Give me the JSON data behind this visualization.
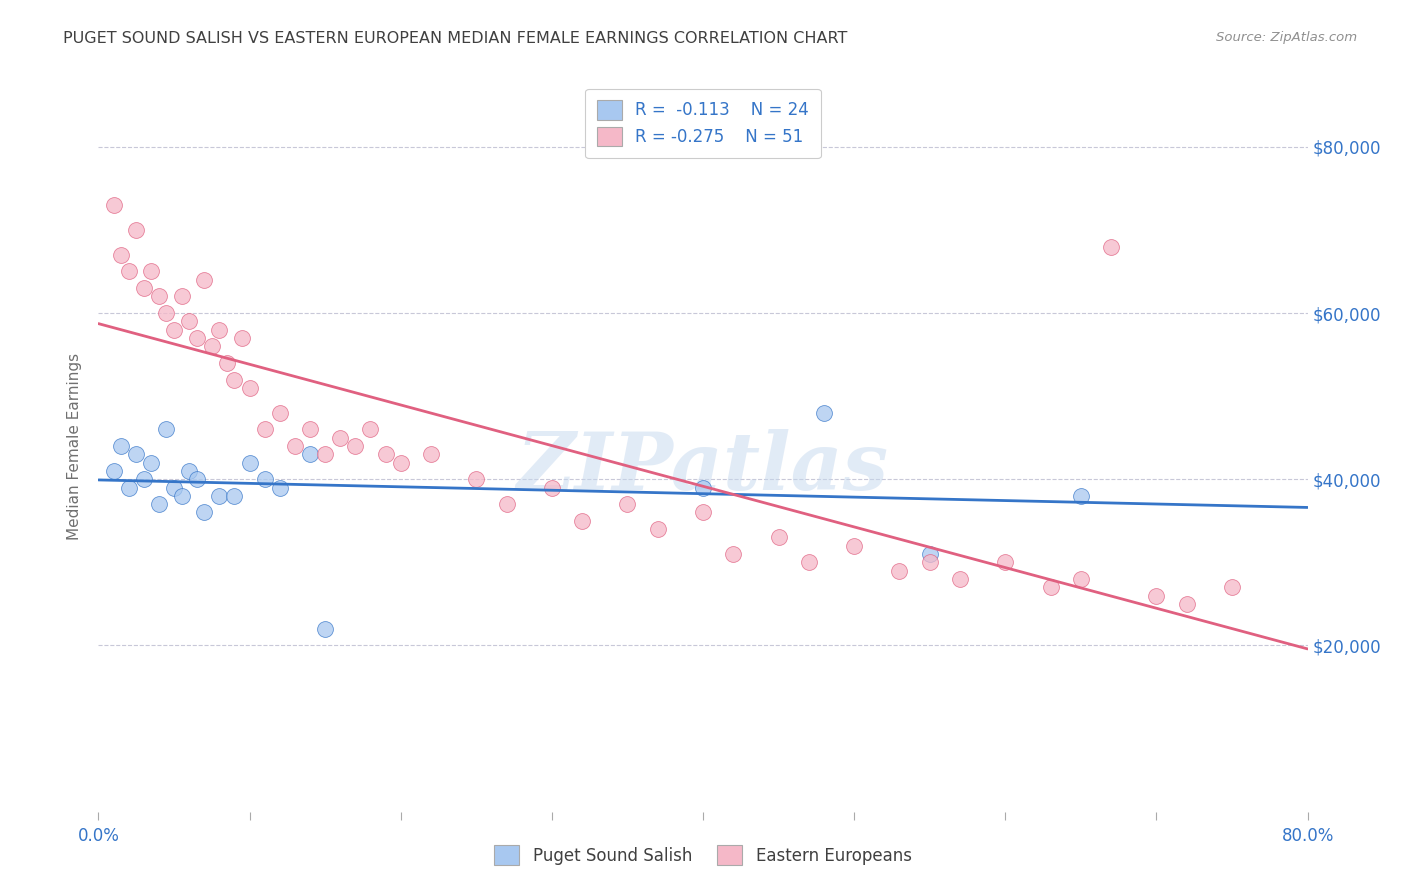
{
  "title": "PUGET SOUND SALISH VS EASTERN EUROPEAN MEDIAN FEMALE EARNINGS CORRELATION CHART",
  "source": "Source: ZipAtlas.com",
  "ylabel": "Median Female Earnings",
  "yticks": [
    20000,
    40000,
    60000,
    80000
  ],
  "ytick_labels": [
    "$20,000",
    "$40,000",
    "$60,000",
    "$80,000"
  ],
  "legend_blue_label": "Puget Sound Salish",
  "legend_pink_label": "Eastern Europeans",
  "watermark": "ZIPatlas",
  "blue_points_x": [
    1.0,
    1.5,
    2.0,
    2.5,
    3.0,
    3.5,
    4.0,
    4.5,
    5.0,
    5.5,
    6.0,
    6.5,
    7.0,
    8.0,
    9.0,
    10.0,
    11.0,
    12.0,
    14.0,
    15.0,
    40.0,
    48.0,
    55.0,
    65.0
  ],
  "blue_points_y": [
    41000,
    44000,
    39000,
    43000,
    40000,
    42000,
    37000,
    46000,
    39000,
    38000,
    41000,
    40000,
    36000,
    38000,
    38000,
    42000,
    40000,
    39000,
    43000,
    22000,
    39000,
    48000,
    31000,
    38000
  ],
  "pink_points_x": [
    1.0,
    1.5,
    2.0,
    2.5,
    3.0,
    3.5,
    4.0,
    4.5,
    5.0,
    5.5,
    6.0,
    6.5,
    7.0,
    7.5,
    8.0,
    8.5,
    9.0,
    9.5,
    10.0,
    11.0,
    12.0,
    13.0,
    14.0,
    15.0,
    16.0,
    17.0,
    18.0,
    19.0,
    20.0,
    22.0,
    25.0,
    27.0,
    30.0,
    32.0,
    35.0,
    37.0,
    40.0,
    42.0,
    45.0,
    47.0,
    50.0,
    53.0,
    55.0,
    57.0,
    60.0,
    63.0,
    65.0,
    67.0,
    70.0,
    72.0,
    75.0
  ],
  "pink_points_y": [
    73000,
    67000,
    65000,
    70000,
    63000,
    65000,
    62000,
    60000,
    58000,
    62000,
    59000,
    57000,
    64000,
    56000,
    58000,
    54000,
    52000,
    57000,
    51000,
    46000,
    48000,
    44000,
    46000,
    43000,
    45000,
    44000,
    46000,
    43000,
    42000,
    43000,
    40000,
    37000,
    39000,
    35000,
    37000,
    34000,
    36000,
    31000,
    33000,
    30000,
    32000,
    29000,
    30000,
    28000,
    30000,
    27000,
    28000,
    68000,
    26000,
    25000,
    27000
  ],
  "blue_color": "#A8C8F0",
  "pink_color": "#F5B8C8",
  "blue_line_color": "#3575C8",
  "pink_line_color": "#E06080",
  "bg_color": "#FFFFFF",
  "grid_color": "#C8C8D8",
  "title_color": "#404040",
  "source_color": "#909090",
  "axis_tick_color": "#3575C8",
  "xmin": 0.0,
  "xmax": 80.0,
  "ymin": 0,
  "ymax": 88000,
  "legend_r_color": "#3575C8",
  "legend_text_color": "#404040"
}
